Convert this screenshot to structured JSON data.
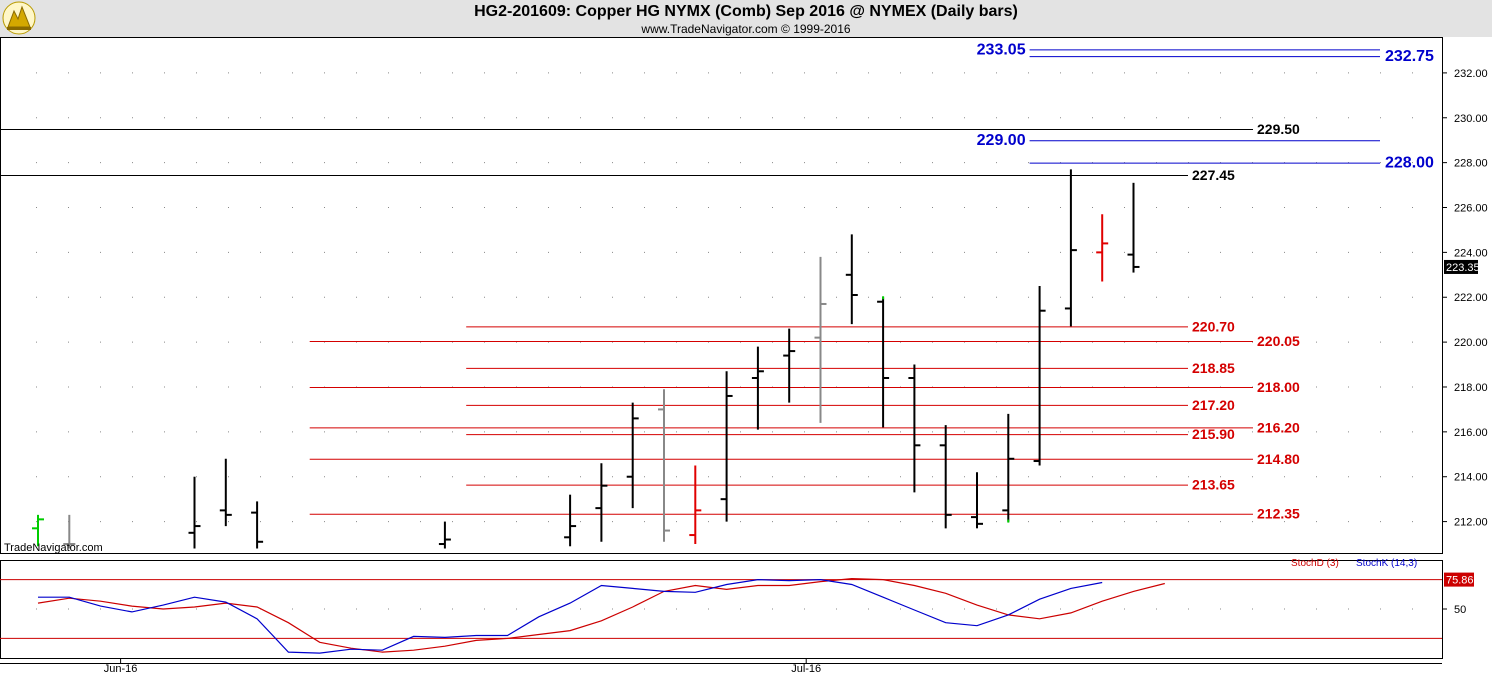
{
  "header": {
    "title": "HG2-201609:  Copper HG NYMX (Comb) Sep 2016 @ NYMEX  (Daily bars)",
    "subtitle": "www.TradeNavigator.com © 1999-2016"
  },
  "watermark": "TradeNavigator.com",
  "colors": {
    "up": "#000000",
    "down": "#e00000",
    "neutral": "#888888",
    "blue_level": "#0000cc",
    "red_level": "#d40000",
    "black_level": "#000000",
    "stoch_d": "#cc0000",
    "stoch_k": "#0000cc",
    "header_bg": "#e3e3e3"
  },
  "chart_data": [
    {
      "type": "ohlc",
      "xlabel": "",
      "ylabel": "",
      "ylim": [
        210.6,
        233.6
      ],
      "y_ticks": [
        "212.00",
        "214.00",
        "216.00",
        "218.00",
        "220.00",
        "222.00",
        "224.00",
        "226.00",
        "228.00",
        "230.00",
        "232.00"
      ],
      "x_ticks": [
        {
          "index": 2,
          "label": "Jun-16"
        },
        {
          "index": 24,
          "label": "Jul-16"
        }
      ],
      "last_price": "223.35",
      "bars": [
        {
          "o": 211.7,
          "h": 212.3,
          "l": 210.9,
          "c": 212.1,
          "color": "green"
        },
        {
          "o": 211.0,
          "h": 212.3,
          "l": 210.8,
          "c": 211.0,
          "color": "gray"
        },
        {
          "o": null,
          "h": null,
          "l": null,
          "c": null
        },
        {
          "o": null,
          "h": null,
          "l": null,
          "c": null
        },
        {
          "o": null,
          "h": null,
          "l": null,
          "c": null
        },
        {
          "o": 211.5,
          "h": 214.0,
          "l": 210.8,
          "c": 211.8,
          "color": "black"
        },
        {
          "o": 212.5,
          "h": 214.8,
          "l": 211.8,
          "c": 212.3,
          "color": "black"
        },
        {
          "o": 212.4,
          "h": 212.9,
          "l": 210.8,
          "c": 211.1,
          "color": "black"
        },
        {
          "o": null,
          "h": null,
          "l": null,
          "c": null
        },
        {
          "o": null,
          "h": null,
          "l": null,
          "c": null
        },
        {
          "o": null,
          "h": null,
          "l": null,
          "c": null
        },
        {
          "o": null,
          "h": null,
          "l": null,
          "c": null
        },
        {
          "o": null,
          "h": null,
          "l": null,
          "c": null
        },
        {
          "o": 211.0,
          "h": 212.0,
          "l": 210.8,
          "c": 211.2,
          "color": "black"
        },
        {
          "o": null,
          "h": null,
          "l": null,
          "c": null
        },
        {
          "o": null,
          "h": null,
          "l": null,
          "c": null
        },
        {
          "o": null,
          "h": null,
          "l": null,
          "c": null
        },
        {
          "o": 211.3,
          "h": 213.2,
          "l": 210.9,
          "c": 211.8,
          "color": "black"
        },
        {
          "o": 212.6,
          "h": 214.6,
          "l": 211.1,
          "c": 213.6,
          "color": "black"
        },
        {
          "o": 214.0,
          "h": 217.3,
          "l": 212.6,
          "c": 216.6,
          "color": "black"
        },
        {
          "o": 217.0,
          "h": 217.9,
          "l": 211.1,
          "c": 211.6,
          "color": "gray"
        },
        {
          "o": 211.4,
          "h": 214.5,
          "l": 211.0,
          "c": 212.5,
          "color": "red"
        },
        {
          "o": 213.0,
          "h": 218.7,
          "l": 212.0,
          "c": 217.6,
          "color": "black"
        },
        {
          "o": 218.4,
          "h": 219.8,
          "l": 216.1,
          "c": 218.7,
          "color": "black"
        },
        {
          "o": 219.4,
          "h": 220.6,
          "l": 217.3,
          "c": 219.6,
          "color": "black"
        },
        {
          "o": 220.2,
          "h": 223.8,
          "l": 216.4,
          "c": 221.7,
          "color": "gray"
        },
        {
          "o": 223.0,
          "h": 224.8,
          "l": 220.8,
          "c": 222.1,
          "color": "black"
        },
        {
          "o": 221.8,
          "h": 222.0,
          "l": 216.2,
          "c": 218.4,
          "color": "black",
          "high_tick": "green"
        },
        {
          "o": 218.4,
          "h": 219.0,
          "l": 213.3,
          "c": 215.4,
          "color": "black"
        },
        {
          "o": 215.4,
          "h": 216.3,
          "l": 211.7,
          "c": 212.3,
          "color": "black"
        },
        {
          "o": 212.2,
          "h": 214.2,
          "l": 211.7,
          "c": 211.9,
          "color": "black"
        },
        {
          "o": 212.5,
          "h": 216.8,
          "l": 212.0,
          "c": 214.8,
          "color": "black",
          "low_tick": "green"
        },
        {
          "o": 214.7,
          "h": 222.5,
          "l": 214.5,
          "c": 221.4,
          "color": "black"
        },
        {
          "o": 221.5,
          "h": 227.7,
          "l": 220.7,
          "c": 224.1,
          "color": "black"
        },
        {
          "o": 224.0,
          "h": 225.7,
          "l": 222.7,
          "c": 224.4,
          "color": "red"
        },
        {
          "o": 223.9,
          "h": 227.1,
          "l": 223.1,
          "c": 223.35,
          "color": "black"
        }
      ],
      "levels": [
        {
          "value": 233.05,
          "label": "233.05",
          "color": "blue",
          "from": 32,
          "label_side": "left"
        },
        {
          "value": 232.75,
          "label": "232.75",
          "color": "blue",
          "from": 32,
          "label_side": "right_far"
        },
        {
          "value": 229.5,
          "label": "229.50",
          "color": "black",
          "from": -2,
          "label_side": "right"
        },
        {
          "value": 229.0,
          "label": "229.00",
          "color": "blue",
          "from": 32,
          "label_side": "left"
        },
        {
          "value": 228.0,
          "label": "228.00",
          "color": "blue",
          "from": 32,
          "label_side": "right_far"
        },
        {
          "value": 227.45,
          "label": "227.45",
          "color": "black",
          "from": -2,
          "label_side": "right_near"
        },
        {
          "value": 220.7,
          "label": "220.70",
          "color": "red",
          "from": 14,
          "label_side": "right_near"
        },
        {
          "value": 220.05,
          "label": "220.05",
          "color": "red",
          "from": 9,
          "label_side": "right"
        },
        {
          "value": 218.85,
          "label": "218.85",
          "color": "red",
          "from": 14,
          "label_side": "right_near"
        },
        {
          "value": 218.0,
          "label": "218.00",
          "color": "red",
          "from": 9,
          "label_side": "right"
        },
        {
          "value": 217.2,
          "label": "217.20",
          "color": "red",
          "from": 14,
          "label_side": "right_near"
        },
        {
          "value": 216.2,
          "label": "216.20",
          "color": "red",
          "from": 9,
          "label_side": "right"
        },
        {
          "value": 215.9,
          "label": "215.90",
          "color": "red",
          "from": 14,
          "label_side": "right_near"
        },
        {
          "value": 214.8,
          "label": "214.80",
          "color": "red",
          "from": 9,
          "label_side": "right"
        },
        {
          "value": 213.65,
          "label": "213.65",
          "color": "red",
          "from": 14,
          "label_side": "right_near"
        },
        {
          "value": 212.35,
          "label": "212.35",
          "color": "red",
          "from": 9,
          "label_side": "right"
        }
      ]
    },
    {
      "type": "line",
      "ylim": [
        0,
        100
      ],
      "y_ticks": [
        "50"
      ],
      "overbought_line": 80,
      "last_value": "75.86",
      "legend": [
        "StochD (3)",
        "StochK (14,3)"
      ],
      "series": [
        {
          "name": "StochD (3)",
          "color": "red",
          "values": [
            56,
            61,
            58,
            53,
            50,
            52,
            56,
            52,
            36,
            16,
            10,
            6,
            8,
            12,
            18,
            20,
            24,
            28,
            38,
            52,
            68,
            74,
            70,
            74,
            74,
            78,
            81,
            80,
            74,
            66,
            54,
            44,
            40,
            46,
            58,
            68,
            76
          ]
        },
        {
          "name": "StochK (14,3)",
          "color": "blue",
          "values": [
            62,
            62,
            53,
            47,
            54,
            62,
            57,
            40,
            6,
            5,
            9,
            8,
            22,
            21,
            23,
            23,
            42,
            56,
            74,
            71,
            68,
            67,
            75,
            80,
            79,
            80,
            75,
            62,
            49,
            36,
            33,
            44,
            60,
            71,
            77
          ]
        }
      ]
    }
  ]
}
